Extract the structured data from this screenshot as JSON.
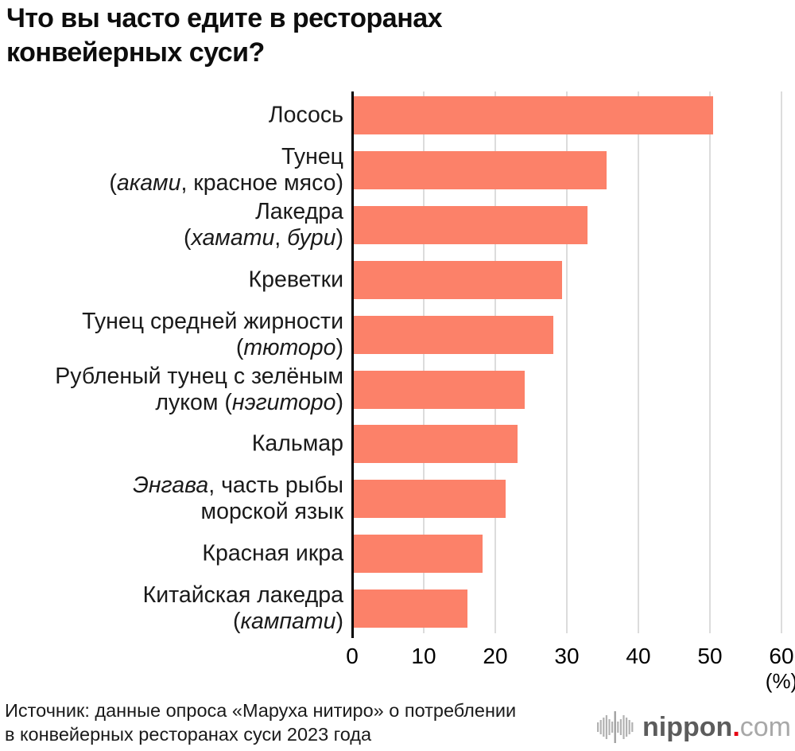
{
  "title": "Что вы часто едите в ресторанах\nконвейерных суси?",
  "chart_data": {
    "type": "bar",
    "orientation": "horizontal",
    "title": "Что вы часто едите в ресторанах конвейерных суси?",
    "categories": [
      "Лосось",
      "Тунец\n(*аками*, красное мясо)",
      "Лакедра\n(*хамати*, *бури*)",
      "Креветки",
      "Тунец средней жирности\n(*тюторо*)",
      "Рубленый тунец с зелёным\nлуком (*нэгиторо*)",
      "Кальмар",
      "*Энгава*, часть рыбы\nморской язык",
      "Красная икра",
      "Китайская лакедра\n(*кампати*)"
    ],
    "values": [
      50.2,
      35.3,
      32.7,
      29.1,
      27.9,
      23.9,
      22.9,
      21.2,
      18.0,
      15.9
    ],
    "xlabel": "(%)",
    "ylabel": "",
    "xlim": [
      0,
      60
    ],
    "x_ticks": [
      0,
      10,
      20,
      30,
      40,
      50,
      60
    ],
    "grid": true,
    "legend": false,
    "bar_color": "#FC8169",
    "gridline_color": "#dcdcdc",
    "axis_color": "#000000",
    "note": "italic segments in category names are marked with *asterisks*"
  },
  "unit_label": "(%)",
  "source": "Источник: данные опроса «Маруха нитиро» о потреблении\nв конвейерных ресторанах суси 2023 года",
  "logo": {
    "brand": "nippon",
    "dot": ".",
    "tld": "com"
  }
}
